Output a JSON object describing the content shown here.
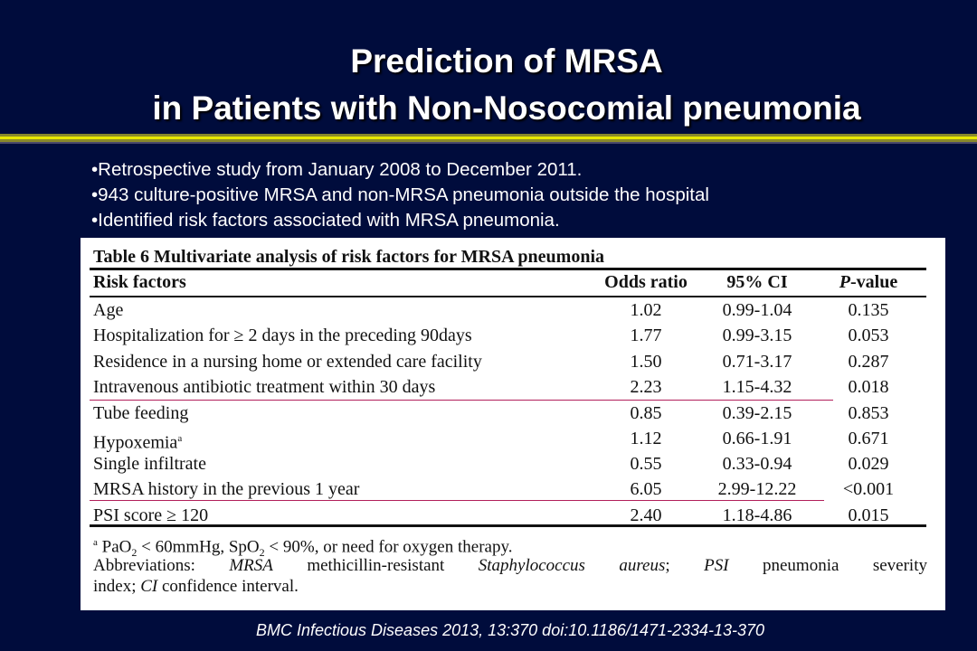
{
  "slide": {
    "title_line1": "Prediction of MRSA",
    "title_line2": "in Patients with Non-Nosocomial pneumonia",
    "bullets": [
      "•Retrospective study from January 2008 to December 2011.",
      "•943 culture-positive MRSA and non-MRSA pneumonia  outside the hospital",
      "•Identified  risk factors associated with MRSA pneumonia."
    ],
    "citation": "BMC Infectious Diseases 2013, 13:370 doi:10.1186/1471-2334-13-370"
  },
  "colors": {
    "background": "#000c3c",
    "band_yellow": "#e8e800",
    "band_olive": "#8a8a2a",
    "highlight_rule": "#b2205a"
  },
  "table": {
    "caption": "Table 6 Multivariate analysis of risk factors for MRSA pneumonia",
    "headers": {
      "factor": "Risk factors",
      "or": "Odds ratio",
      "ci": "95% CI",
      "p_italic": "P",
      "p_rest": "-value"
    },
    "rows": [
      {
        "factor": "Age",
        "or": "1.02",
        "ci": "0.99-1.04",
        "p": "0.135"
      },
      {
        "factor": "Hospitalization for ≥ 2 days in the preceding 90days",
        "or": "1.77",
        "ci": "0.99-3.15",
        "p": "0.053"
      },
      {
        "factor": "Residence in a nursing home or extended care facility",
        "or": "1.50",
        "ci": "0.71-3.17",
        "p": "0.287"
      },
      {
        "factor": "Intravenous antibiotic treatment within 30 days",
        "or": "2.23",
        "ci": "1.15-4.32",
        "p": "0.018"
      },
      {
        "factor": "Tube feeding",
        "or": "0.85",
        "ci": "0.39-2.15",
        "p": "0.853"
      },
      {
        "factor": "Hypoxemia",
        "factor_sup": "a",
        "or": "1.12",
        "ci": "0.66-1.91",
        "p": "0.671"
      },
      {
        "factor": "Single infiltrate",
        "or": "0.55",
        "ci": "0.33-0.94",
        "p": "0.029"
      },
      {
        "factor": "MRSA history in the previous 1 year",
        "or": "6.05",
        "ci": "2.99-12.22",
        "p": "<0.001"
      },
      {
        "factor": "PSI score ≥ 120",
        "or": "2.40",
        "ci": "1.18-4.86",
        "p": "0.015"
      }
    ],
    "footnote": {
      "marker": "a",
      "pa": " PaO",
      "sub1": "2",
      "mid": " < 60mmHg, SpO",
      "sub2": "2",
      "end": " < 90%, or need for oxygen therapy."
    },
    "abbreviations": {
      "lead": "Abbreviations: ",
      "mrsa": "MRSA",
      "mrsa_def": " methicillin-resistant ",
      "organism": "Staphylococcus aureus",
      "sep": "; ",
      "psi": "PSI",
      "psi_def": " pneumonia severity",
      "line2_start": "index; ",
      "ci": "CI",
      "ci_def": " confidence interval."
    }
  }
}
